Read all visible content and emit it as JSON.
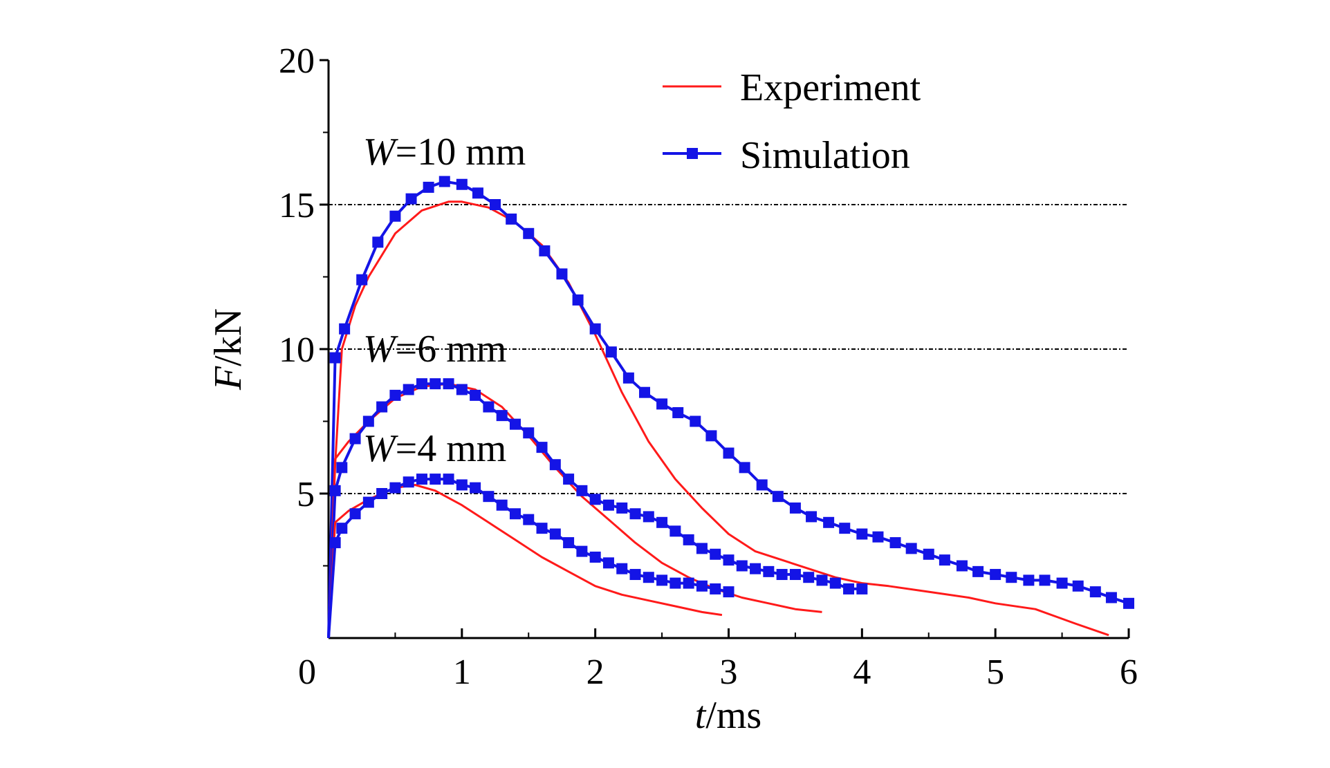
{
  "chart_data": {
    "type": "line",
    "title": "",
    "xlabel": {
      "italic": "t",
      "rest": "/ms"
    },
    "ylabel": {
      "italic": "F",
      "rest": "/kN"
    },
    "xlim": [
      0,
      6
    ],
    "ylim": [
      0,
      20
    ],
    "xticks": [
      "0",
      "1",
      "2",
      "3",
      "4",
      "5",
      "6"
    ],
    "yticks": [
      "0",
      "5",
      "10",
      "15",
      "20"
    ],
    "grid": {
      "horizontal_dashed_at": [
        5,
        10,
        15
      ]
    },
    "legend": {
      "placement": "top-right",
      "entries": [
        {
          "label": "Experiment",
          "color": "#ff1a1a",
          "marker": "none"
        },
        {
          "label": "Simulation",
          "color": "#1414e6",
          "marker": "square"
        }
      ]
    },
    "annotations": [
      {
        "italic": "W",
        "rest": "=10 mm"
      },
      {
        "italic": "W",
        "rest": "=6 mm"
      },
      {
        "italic": "W",
        "rest": "=4 mm"
      }
    ],
    "series": [
      {
        "name": "Experiment",
        "group": "W=10 mm",
        "points": [
          [
            0,
            0
          ],
          [
            0.05,
            6
          ],
          [
            0.1,
            10
          ],
          [
            0.2,
            11.5
          ],
          [
            0.3,
            12.5
          ],
          [
            0.5,
            14
          ],
          [
            0.7,
            14.8
          ],
          [
            0.9,
            15.1
          ],
          [
            1.0,
            15.1
          ],
          [
            1.2,
            14.9
          ],
          [
            1.4,
            14.4
          ],
          [
            1.6,
            13.6
          ],
          [
            1.8,
            12.3
          ],
          [
            2.0,
            10.5
          ],
          [
            2.2,
            8.5
          ],
          [
            2.4,
            6.8
          ],
          [
            2.6,
            5.5
          ],
          [
            2.8,
            4.5
          ],
          [
            3.0,
            3.6
          ],
          [
            3.2,
            3.0
          ],
          [
            3.4,
            2.7
          ],
          [
            3.6,
            2.4
          ],
          [
            3.8,
            2.1
          ],
          [
            4.0,
            1.9
          ],
          [
            4.2,
            1.8
          ],
          [
            4.5,
            1.6
          ],
          [
            4.8,
            1.4
          ],
          [
            5.0,
            1.2
          ],
          [
            5.3,
            1.0
          ],
          [
            5.6,
            0.5
          ],
          [
            5.85,
            0.1
          ]
        ]
      },
      {
        "name": "Simulation",
        "group": "W=10 mm",
        "points": [
          [
            0,
            0
          ],
          [
            0.05,
            9.7
          ],
          [
            0.12,
            10.7
          ],
          [
            0.25,
            12.4
          ],
          [
            0.37,
            13.7
          ],
          [
            0.5,
            14.6
          ],
          [
            0.62,
            15.2
          ],
          [
            0.75,
            15.6
          ],
          [
            0.87,
            15.8
          ],
          [
            1.0,
            15.7
          ],
          [
            1.12,
            15.4
          ],
          [
            1.25,
            15.0
          ],
          [
            1.37,
            14.5
          ],
          [
            1.5,
            14.0
          ],
          [
            1.62,
            13.4
          ],
          [
            1.75,
            12.6
          ],
          [
            1.87,
            11.7
          ],
          [
            2.0,
            10.7
          ],
          [
            2.12,
            9.9
          ],
          [
            2.25,
            9.0
          ],
          [
            2.37,
            8.5
          ],
          [
            2.5,
            8.1
          ],
          [
            2.62,
            7.8
          ],
          [
            2.75,
            7.5
          ],
          [
            2.87,
            7.0
          ],
          [
            3.0,
            6.4
          ],
          [
            3.12,
            5.9
          ],
          [
            3.25,
            5.3
          ],
          [
            3.37,
            4.9
          ],
          [
            3.5,
            4.5
          ],
          [
            3.62,
            4.2
          ],
          [
            3.75,
            4.0
          ],
          [
            3.87,
            3.8
          ],
          [
            4.0,
            3.6
          ],
          [
            4.12,
            3.5
          ],
          [
            4.25,
            3.3
          ],
          [
            4.37,
            3.1
          ],
          [
            4.5,
            2.9
          ],
          [
            4.62,
            2.7
          ],
          [
            4.75,
            2.5
          ],
          [
            4.87,
            2.3
          ],
          [
            5.0,
            2.2
          ],
          [
            5.12,
            2.1
          ],
          [
            5.25,
            2.0
          ],
          [
            5.37,
            2.0
          ],
          [
            5.5,
            1.9
          ],
          [
            5.62,
            1.8
          ],
          [
            5.75,
            1.6
          ],
          [
            5.87,
            1.4
          ],
          [
            6.0,
            1.2
          ]
        ]
      },
      {
        "name": "Experiment",
        "group": "W=6 mm",
        "points": [
          [
            0,
            0
          ],
          [
            0.05,
            6.2
          ],
          [
            0.15,
            6.8
          ],
          [
            0.3,
            7.5
          ],
          [
            0.5,
            8.3
          ],
          [
            0.7,
            8.7
          ],
          [
            0.9,
            8.8
          ],
          [
            1.1,
            8.6
          ],
          [
            1.3,
            8.0
          ],
          [
            1.5,
            7.0
          ],
          [
            1.7,
            5.9
          ],
          [
            1.9,
            4.9
          ],
          [
            2.1,
            4.1
          ],
          [
            2.3,
            3.3
          ],
          [
            2.5,
            2.6
          ],
          [
            2.7,
            2.1
          ],
          [
            2.9,
            1.7
          ],
          [
            3.1,
            1.4
          ],
          [
            3.3,
            1.2
          ],
          [
            3.5,
            1.0
          ],
          [
            3.7,
            0.9
          ]
        ]
      },
      {
        "name": "Simulation",
        "group": "W=6 mm",
        "points": [
          [
            0,
            0
          ],
          [
            0.05,
            5.1
          ],
          [
            0.1,
            5.9
          ],
          [
            0.2,
            6.9
          ],
          [
            0.3,
            7.5
          ],
          [
            0.4,
            8.0
          ],
          [
            0.5,
            8.4
          ],
          [
            0.6,
            8.6
          ],
          [
            0.7,
            8.8
          ],
          [
            0.8,
            8.8
          ],
          [
            0.9,
            8.8
          ],
          [
            1.0,
            8.6
          ],
          [
            1.1,
            8.4
          ],
          [
            1.2,
            8.0
          ],
          [
            1.3,
            7.7
          ],
          [
            1.4,
            7.4
          ],
          [
            1.5,
            7.1
          ],
          [
            1.6,
            6.6
          ],
          [
            1.7,
            6.0
          ],
          [
            1.8,
            5.5
          ],
          [
            1.9,
            5.1
          ],
          [
            2.0,
            4.8
          ],
          [
            2.1,
            4.6
          ],
          [
            2.2,
            4.5
          ],
          [
            2.3,
            4.3
          ],
          [
            2.4,
            4.2
          ],
          [
            2.5,
            4.0
          ],
          [
            2.6,
            3.7
          ],
          [
            2.7,
            3.4
          ],
          [
            2.8,
            3.1
          ],
          [
            2.9,
            2.9
          ],
          [
            3.0,
            2.7
          ],
          [
            3.1,
            2.5
          ],
          [
            3.2,
            2.4
          ],
          [
            3.3,
            2.3
          ],
          [
            3.4,
            2.2
          ],
          [
            3.5,
            2.2
          ],
          [
            3.6,
            2.1
          ],
          [
            3.7,
            2.0
          ],
          [
            3.8,
            1.9
          ],
          [
            3.9,
            1.7
          ],
          [
            4.0,
            1.7
          ]
        ]
      },
      {
        "name": "Experiment",
        "group": "W=4 mm",
        "points": [
          [
            0,
            0
          ],
          [
            0.05,
            4.0
          ],
          [
            0.15,
            4.4
          ],
          [
            0.3,
            4.8
          ],
          [
            0.5,
            5.2
          ],
          [
            0.65,
            5.3
          ],
          [
            0.8,
            5.1
          ],
          [
            1.0,
            4.6
          ],
          [
            1.2,
            4.0
          ],
          [
            1.4,
            3.4
          ],
          [
            1.6,
            2.8
          ],
          [
            1.8,
            2.3
          ],
          [
            2.0,
            1.8
          ],
          [
            2.2,
            1.5
          ],
          [
            2.4,
            1.3
          ],
          [
            2.6,
            1.1
          ],
          [
            2.8,
            0.9
          ],
          [
            2.95,
            0.8
          ]
        ]
      },
      {
        "name": "Simulation",
        "group": "W=4 mm",
        "points": [
          [
            0,
            0
          ],
          [
            0.05,
            3.3
          ],
          [
            0.1,
            3.8
          ],
          [
            0.2,
            4.3
          ],
          [
            0.3,
            4.7
          ],
          [
            0.4,
            5.0
          ],
          [
            0.5,
            5.2
          ],
          [
            0.6,
            5.4
          ],
          [
            0.7,
            5.5
          ],
          [
            0.8,
            5.5
          ],
          [
            0.9,
            5.5
          ],
          [
            1.0,
            5.3
          ],
          [
            1.1,
            5.2
          ],
          [
            1.2,
            4.9
          ],
          [
            1.3,
            4.6
          ],
          [
            1.4,
            4.3
          ],
          [
            1.5,
            4.1
          ],
          [
            1.6,
            3.8
          ],
          [
            1.7,
            3.6
          ],
          [
            1.8,
            3.3
          ],
          [
            1.9,
            3.0
          ],
          [
            2.0,
            2.8
          ],
          [
            2.1,
            2.6
          ],
          [
            2.2,
            2.4
          ],
          [
            2.3,
            2.2
          ],
          [
            2.4,
            2.1
          ],
          [
            2.5,
            2.0
          ],
          [
            2.6,
            1.9
          ],
          [
            2.7,
            1.9
          ],
          [
            2.8,
            1.8
          ],
          [
            2.9,
            1.7
          ],
          [
            3.0,
            1.6
          ]
        ]
      }
    ]
  }
}
